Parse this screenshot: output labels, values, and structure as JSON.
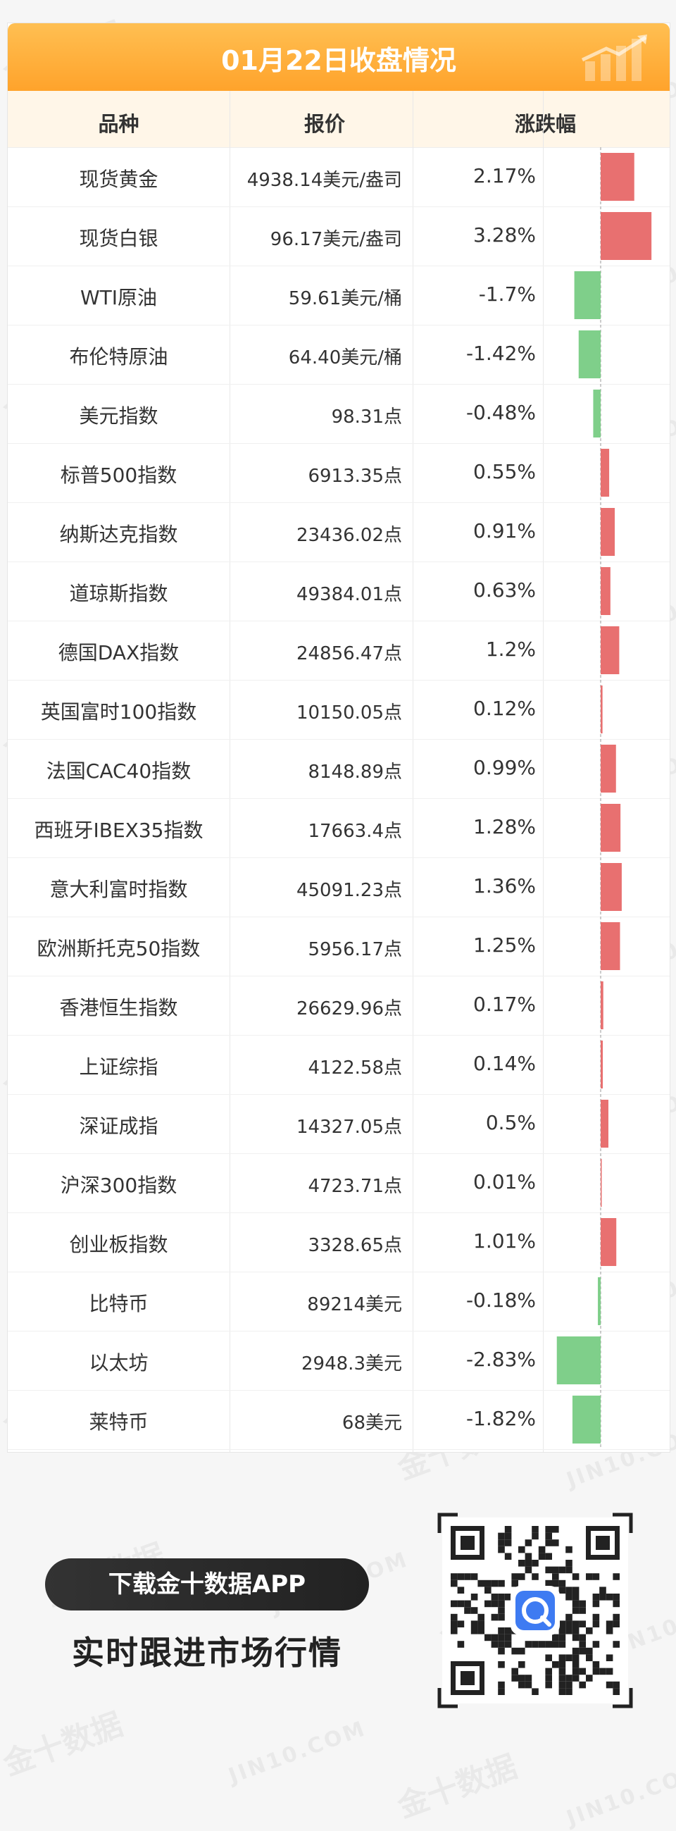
{
  "title": "01月22日收盘情况",
  "headers": {
    "name": "品种",
    "price": "报价",
    "change": "涨跌幅"
  },
  "colors": {
    "up": "#e87070",
    "down": "#7fcf8a",
    "header_orange": "#ffa32b"
  },
  "chart_data": {
    "type": "table",
    "title": "01月22日收盘情况",
    "columns": [
      "品种",
      "报价",
      "涨跌幅"
    ],
    "rows": [
      {
        "name": "现货黄金",
        "price": "4938.14美元/盎司",
        "change": "2.17%",
        "value": 2.17
      },
      {
        "name": "现货白银",
        "price": "96.17美元/盎司",
        "change": "3.28%",
        "value": 3.28
      },
      {
        "name": "WTI原油",
        "price": "59.61美元/桶",
        "change": "-1.7%",
        "value": -1.7
      },
      {
        "name": "布伦特原油",
        "price": "64.40美元/桶",
        "change": "-1.42%",
        "value": -1.42
      },
      {
        "name": "美元指数",
        "price": "98.31点",
        "change": "-0.48%",
        "value": -0.48
      },
      {
        "name": "标普500指数",
        "price": "6913.35点",
        "change": "0.55%",
        "value": 0.55
      },
      {
        "name": "纳斯达克指数",
        "price": "23436.02点",
        "change": "0.91%",
        "value": 0.91
      },
      {
        "name": "道琼斯指数",
        "price": "49384.01点",
        "change": "0.63%",
        "value": 0.63
      },
      {
        "name": "德国DAX指数",
        "price": "24856.47点",
        "change": "1.2%",
        "value": 1.2
      },
      {
        "name": "英国富时100指数",
        "price": "10150.05点",
        "change": "0.12%",
        "value": 0.12
      },
      {
        "name": "法国CAC40指数",
        "price": "8148.89点",
        "change": "0.99%",
        "value": 0.99
      },
      {
        "name": "西班牙IBEX35指数",
        "price": "17663.4点",
        "change": "1.28%",
        "value": 1.28
      },
      {
        "name": "意大利富时指数",
        "price": "45091.23点",
        "change": "1.36%",
        "value": 1.36
      },
      {
        "name": "欧洲斯托克50指数",
        "price": "5956.17点",
        "change": "1.25%",
        "value": 1.25
      },
      {
        "name": "香港恒生指数",
        "price": "26629.96点",
        "change": "0.17%",
        "value": 0.17
      },
      {
        "name": "上证综指",
        "price": "4122.58点",
        "change": "0.14%",
        "value": 0.14
      },
      {
        "name": "深证成指",
        "price": "14327.05点",
        "change": "0.5%",
        "value": 0.5
      },
      {
        "name": "沪深300指数",
        "price": "4723.71点",
        "change": "0.01%",
        "value": 0.01
      },
      {
        "name": "创业板指数",
        "price": "3328.65点",
        "change": "1.01%",
        "value": 1.01
      },
      {
        "name": "比特币",
        "price": "89214美元",
        "change": "-0.18%",
        "value": -0.18
      },
      {
        "name": "以太坊",
        "price": "2948.3美元",
        "change": "-2.83%",
        "value": -2.83
      },
      {
        "name": "莱特币",
        "price": "68美元",
        "change": "-1.82%",
        "value": -1.82
      }
    ]
  },
  "promo": {
    "download": "下载金十数据APP",
    "slogan": "实时跟进市场行情"
  },
  "watermarks": {
    "cn": "金十数据",
    "en": "JIN10.COM"
  }
}
